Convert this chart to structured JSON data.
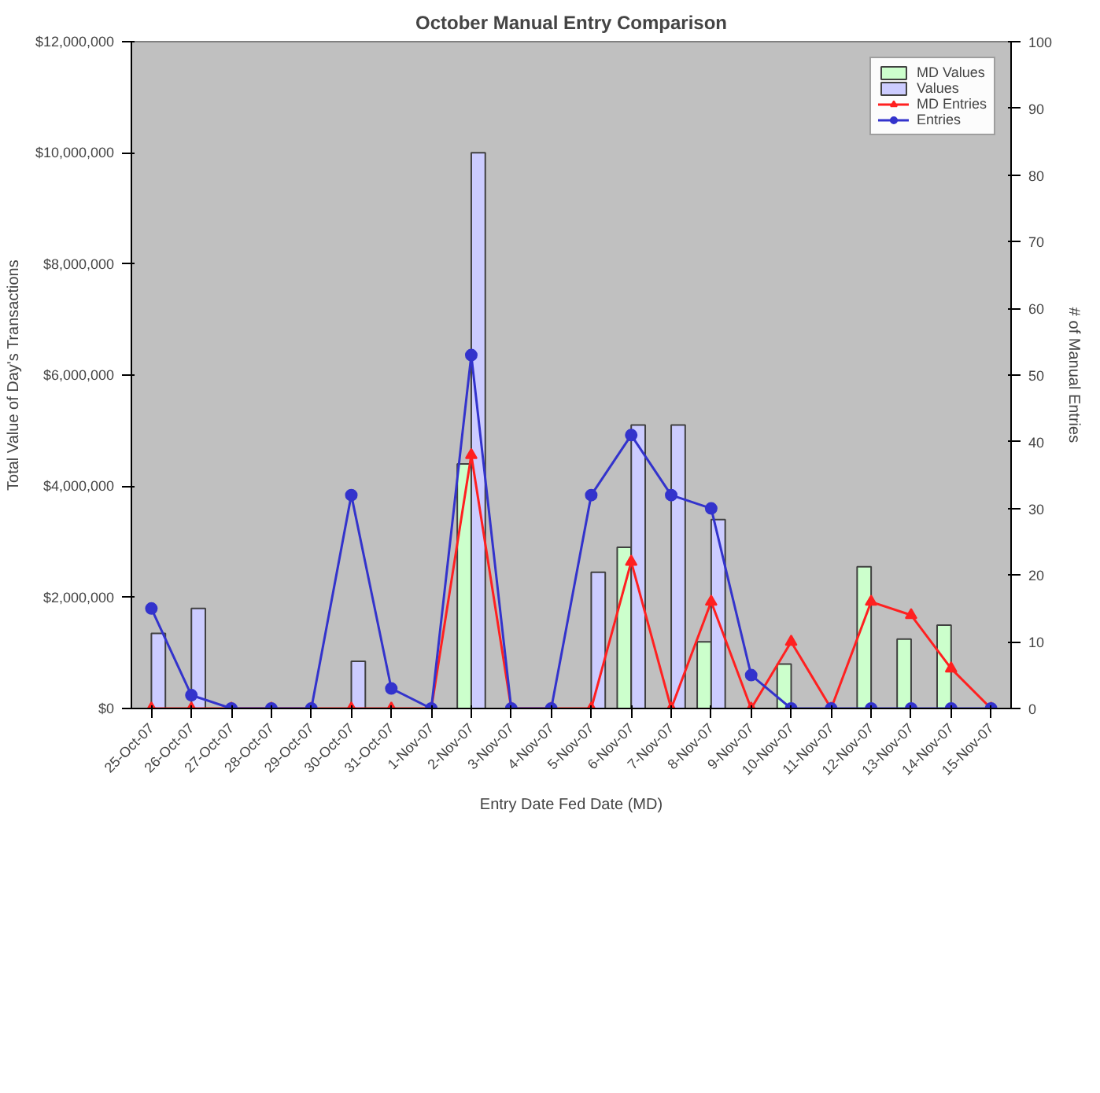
{
  "chart_data": {
    "type": "bar",
    "title": "October Manual Entry Comparison",
    "xlabel": "Entry Date Fed Date (MD)",
    "ylabel": "Total Value of Day's Transactions",
    "y2label": "# of Manual Entries",
    "categories": [
      "25-Oct-07",
      "26-Oct-07",
      "27-Oct-07",
      "28-Oct-07",
      "29-Oct-07",
      "30-Oct-07",
      "31-Oct-07",
      "1-Nov-07",
      "2-Nov-07",
      "3-Nov-07",
      "4-Nov-07",
      "5-Nov-07",
      "6-Nov-07",
      "7-Nov-07",
      "8-Nov-07",
      "9-Nov-07",
      "10-Nov-07",
      "11-Nov-07",
      "12-Nov-07",
      "13-Nov-07",
      "14-Nov-07",
      "15-Nov-07"
    ],
    "series": [
      {
        "name": "MD Values",
        "color": "#ccffcc",
        "values": [
          null,
          null,
          null,
          null,
          null,
          null,
          null,
          null,
          4400000,
          null,
          null,
          null,
          2900000,
          null,
          1200000,
          null,
          800000,
          null,
          2550000,
          1250000,
          1500000,
          null
        ]
      },
      {
        "name": "Values",
        "color": "#ccccff",
        "values": [
          1350000,
          1800000,
          null,
          null,
          null,
          850000,
          null,
          null,
          10000000,
          null,
          null,
          2450000,
          5100000,
          5100000,
          3400000,
          null,
          null,
          null,
          null,
          null,
          null,
          null
        ]
      },
      {
        "name": "MD Entries",
        "type": "line",
        "axis": "y2",
        "color": "#ff2020",
        "marker": "triangle",
        "values": [
          0,
          0,
          0,
          0,
          0,
          0,
          0,
          0,
          38,
          0,
          0,
          0,
          22,
          0,
          16,
          0,
          10,
          0,
          16,
          14,
          6,
          0
        ]
      },
      {
        "name": "Entries",
        "type": "line",
        "axis": "y2",
        "color": "#3333cc",
        "marker": "circle",
        "values": [
          15,
          2,
          0,
          0,
          0,
          32,
          3,
          0,
          53,
          0,
          0,
          32,
          41,
          32,
          30,
          5,
          0,
          0,
          0,
          0,
          0,
          0
        ]
      }
    ],
    "ylim": [
      0,
      12000000
    ],
    "yticks": [
      {
        "value": 0,
        "label": "$0"
      },
      {
        "value": 2000000,
        "label": "$2,000,000"
      },
      {
        "value": 4000000,
        "label": "$4,000,000"
      },
      {
        "value": 6000000,
        "label": "$6,000,000"
      },
      {
        "value": 8000000,
        "label": "$8,000,000"
      },
      {
        "value": 10000000,
        "label": "$10,000,000"
      },
      {
        "value": 12000000,
        "label": "$12,000,000"
      }
    ],
    "y2lim": [
      0,
      100
    ],
    "y2ticks": [
      0,
      10,
      20,
      30,
      40,
      50,
      60,
      70,
      80,
      90,
      100
    ],
    "legend": "top right",
    "grid": false,
    "line_style": "solid"
  }
}
